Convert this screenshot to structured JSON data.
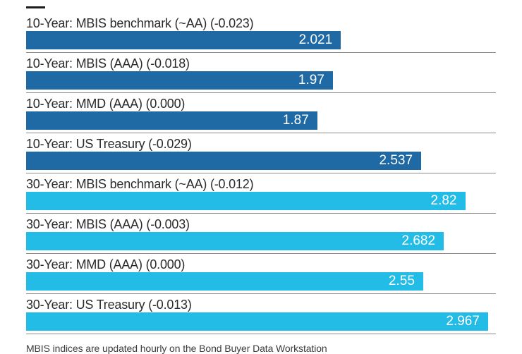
{
  "chart_data": {
    "type": "bar",
    "orientation": "horizontal",
    "xlim": [
      0,
      3.017
    ],
    "grid": false,
    "legend": "none",
    "colors": {
      "10-year": "#1f6aa4",
      "30-year": "#22bce7"
    },
    "separator_color": "#8c8c8c",
    "bars": [
      {
        "label": "10-Year: MBIS benchmark (~AA) (-0.023)",
        "group": "10-year",
        "maturity": "10-Year",
        "index_name": "MBIS benchmark (~AA)",
        "change": -0.023,
        "value": 2.021,
        "value_label": "2.021"
      },
      {
        "label": "10-Year: MBIS (AAA) (-0.018)",
        "group": "10-year",
        "maturity": "10-Year",
        "index_name": "MBIS (AAA)",
        "change": -0.018,
        "value": 1.97,
        "value_label": "1.97"
      },
      {
        "label": "10-Year: MMD (AAA) (0.000)",
        "group": "10-year",
        "maturity": "10-Year",
        "index_name": "MMD (AAA)",
        "change": 0.0,
        "value": 1.87,
        "value_label": "1.87"
      },
      {
        "label": "10-Year: US Treasury (-0.029)",
        "group": "10-year",
        "maturity": "10-Year",
        "index_name": "US Treasury",
        "change": -0.029,
        "value": 2.537,
        "value_label": "2.537"
      },
      {
        "label": "30-Year: MBIS benchmark (~AA) (-0.012)",
        "group": "30-year",
        "maturity": "30-Year",
        "index_name": "MBIS benchmark (~AA)",
        "change": -0.012,
        "value": 2.82,
        "value_label": "2.82"
      },
      {
        "label": "30-Year: MBIS (AAA) (-0.003)",
        "group": "30-year",
        "maturity": "30-Year",
        "index_name": "MBIS (AAA)",
        "change": -0.003,
        "value": 2.682,
        "value_label": "2.682"
      },
      {
        "label": "30-Year: MMD (AAA) (0.000)",
        "group": "30-year",
        "maturity": "30-Year",
        "index_name": "MMD (AAA)",
        "change": 0.0,
        "value": 2.55,
        "value_label": "2.55"
      },
      {
        "label": "30-Year: US Treasury (-0.013)",
        "group": "30-year",
        "maturity": "30-Year",
        "index_name": "US Treasury",
        "change": -0.013,
        "value": 2.967,
        "value_label": "2.967"
      }
    ]
  },
  "footer": {
    "note": "MBIS indices are updated hourly on the Bond Buyer Data Workstation"
  }
}
